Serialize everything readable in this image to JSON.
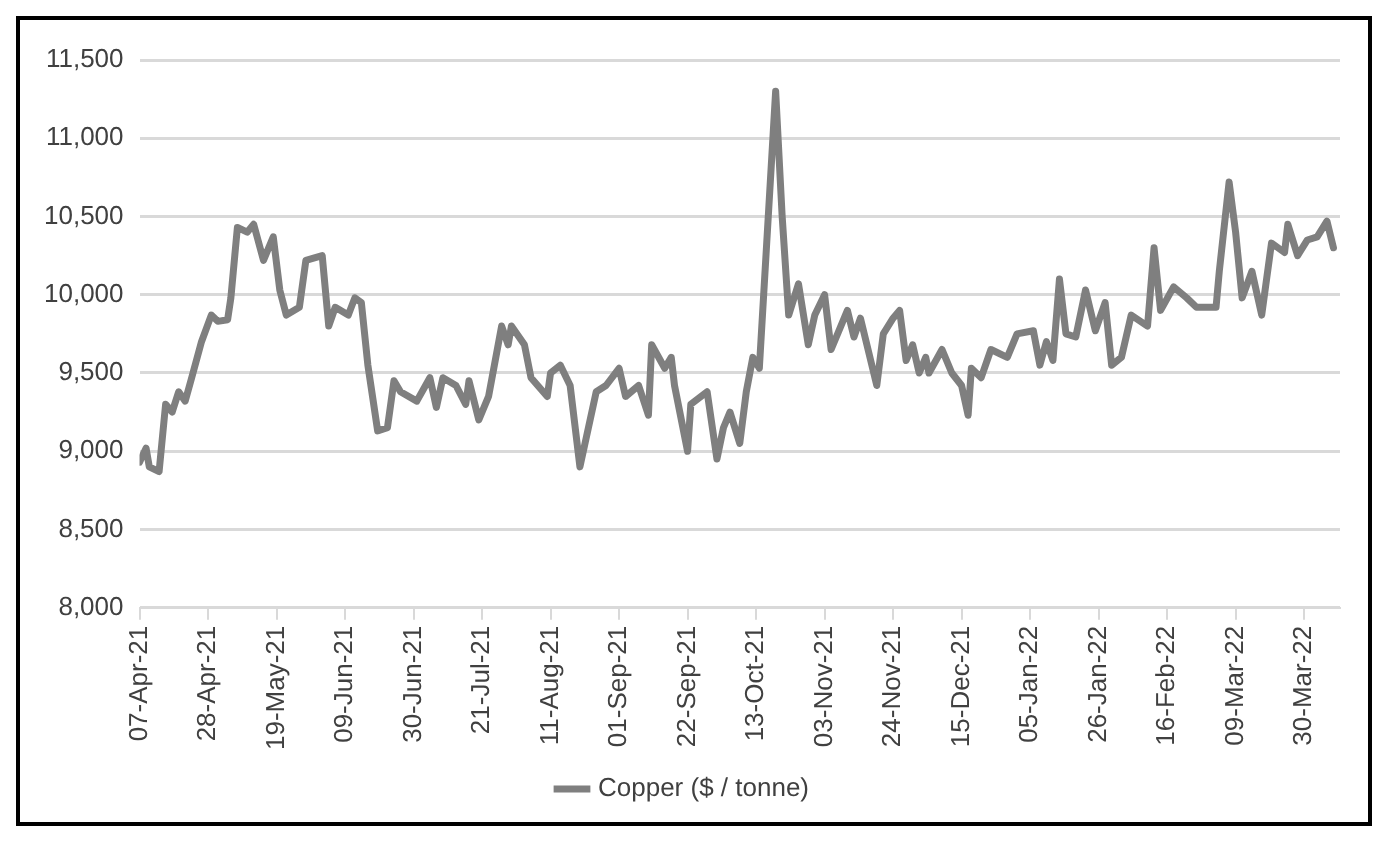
{
  "chart_data": {
    "type": "line",
    "x": [
      "2021-04-07",
      "2021-04-09",
      "2021-04-10",
      "2021-04-13",
      "2021-04-15",
      "2021-04-17",
      "2021-04-19",
      "2021-04-21",
      "2021-04-23",
      "2021-04-26",
      "2021-04-29",
      "2021-05-01",
      "2021-05-04",
      "2021-05-05",
      "2021-05-07",
      "2021-05-10",
      "2021-05-12",
      "2021-05-15",
      "2021-05-18",
      "2021-05-20",
      "2021-05-22",
      "2021-05-26",
      "2021-05-28",
      "2021-06-02",
      "2021-06-04",
      "2021-06-06",
      "2021-06-10",
      "2021-06-12",
      "2021-06-14",
      "2021-06-16",
      "2021-06-19",
      "2021-06-22",
      "2021-06-24",
      "2021-06-26",
      "2021-07-01",
      "2021-07-05",
      "2021-07-07",
      "2021-07-09",
      "2021-07-13",
      "2021-07-16",
      "2021-07-17",
      "2021-07-20",
      "2021-07-23",
      "2021-07-27",
      "2021-07-29",
      "2021-07-30",
      "2021-08-03",
      "2021-08-05",
      "2021-08-10",
      "2021-08-11",
      "2021-08-14",
      "2021-08-17",
      "2021-08-20",
      "2021-08-25",
      "2021-08-28",
      "2021-09-01",
      "2021-09-03",
      "2021-09-07",
      "2021-09-10",
      "2021-09-11",
      "2021-09-15",
      "2021-09-17",
      "2021-09-18",
      "2021-09-22",
      "2021-09-23",
      "2021-09-28",
      "2021-10-01",
      "2021-10-03",
      "2021-10-05",
      "2021-10-08",
      "2021-10-10",
      "2021-10-12",
      "2021-10-14",
      "2021-10-19",
      "2021-10-21",
      "2021-10-23",
      "2021-10-26",
      "2021-10-29",
      "2021-10-31",
      "2021-11-03",
      "2021-11-05",
      "2021-11-10",
      "2021-11-12",
      "2021-11-14",
      "2021-11-19",
      "2021-11-21",
      "2021-11-24",
      "2021-11-26",
      "2021-11-28",
      "2021-11-30",
      "2021-12-02",
      "2021-12-04",
      "2021-12-05",
      "2021-12-09",
      "2021-12-12",
      "2021-12-15",
      "2021-12-17",
      "2021-12-18",
      "2021-12-21",
      "2021-12-24",
      "2021-12-29",
      "2022-01-01",
      "2022-01-06",
      "2022-01-08",
      "2022-01-10",
      "2022-01-12",
      "2022-01-14",
      "2022-01-16",
      "2022-01-19",
      "2022-01-22",
      "2022-01-25",
      "2022-01-28",
      "2022-01-30",
      "2022-02-02",
      "2022-02-05",
      "2022-02-10",
      "2022-02-12",
      "2022-02-14",
      "2022-02-18",
      "2022-02-22",
      "2022-02-25",
      "2022-03-03",
      "2022-03-04",
      "2022-03-07",
      "2022-03-09",
      "2022-03-11",
      "2022-03-14",
      "2022-03-17",
      "2022-03-20",
      "2022-03-24",
      "2022-03-25",
      "2022-03-28",
      "2022-03-31",
      "2022-04-03",
      "2022-04-06",
      "2022-04-08"
    ],
    "series": [
      {
        "name": "Copper ($ / tonne)",
        "color": "#7f7f7f",
        "values": [
          8930,
          9020,
          8900,
          8870,
          9300,
          9250,
          9380,
          9320,
          9470,
          9700,
          9870,
          9830,
          9840,
          9980,
          10430,
          10400,
          10450,
          10220,
          10370,
          10030,
          9870,
          9920,
          10220,
          10250,
          9800,
          9920,
          9870,
          9980,
          9950,
          9550,
          9130,
          9150,
          9450,
          9380,
          9320,
          9470,
          9280,
          9470,
          9420,
          9300,
          9450,
          9200,
          9350,
          9800,
          9680,
          9800,
          9680,
          9470,
          9350,
          9500,
          9550,
          9420,
          8900,
          9380,
          9420,
          9530,
          9350,
          9420,
          9230,
          9680,
          9530,
          9600,
          9420,
          9000,
          9300,
          9380,
          8950,
          9150,
          9250,
          9050,
          9380,
          9600,
          9530,
          11300,
          10500,
          9870,
          10070,
          9680,
          9870,
          10000,
          9650,
          9900,
          9730,
          9850,
          9420,
          9750,
          9850,
          9900,
          9580,
          9680,
          9500,
          9600,
          9500,
          9650,
          9500,
          9420,
          9230,
          9530,
          9470,
          9650,
          9600,
          9750,
          9770,
          9550,
          9700,
          9580,
          10100,
          9750,
          9730,
          10030,
          9770,
          9950,
          9550,
          9600,
          9870,
          9800,
          10300,
          9900,
          10050,
          9980,
          9920,
          9920,
          10150,
          10720,
          10400,
          9980,
          10150,
          9870,
          10330,
          10270,
          10450,
          10250,
          10350,
          10370,
          10470,
          10300
        ]
      }
    ],
    "xlim": [
      "2021-04-07",
      "2022-04-10"
    ],
    "xticks": [
      {
        "value": "2021-04-07",
        "label": "07-Apr-21"
      },
      {
        "value": "2021-04-28",
        "label": "28-Apr-21"
      },
      {
        "value": "2021-05-19",
        "label": "19-May-21"
      },
      {
        "value": "2021-06-09",
        "label": "09-Jun-21"
      },
      {
        "value": "2021-06-30",
        "label": "30-Jun-21"
      },
      {
        "value": "2021-07-21",
        "label": "21-Jul-21"
      },
      {
        "value": "2021-08-11",
        "label": "11-Aug-21"
      },
      {
        "value": "2021-09-01",
        "label": "01-Sep-21"
      },
      {
        "value": "2021-09-22",
        "label": "22-Sep-21"
      },
      {
        "value": "2021-10-13",
        "label": "13-Oct-21"
      },
      {
        "value": "2021-11-03",
        "label": "03-Nov-21"
      },
      {
        "value": "2021-11-24",
        "label": "24-Nov-21"
      },
      {
        "value": "2021-12-15",
        "label": "15-Dec-21"
      },
      {
        "value": "2022-01-05",
        "label": "05-Jan-22"
      },
      {
        "value": "2022-01-26",
        "label": "26-Jan-22"
      },
      {
        "value": "2022-02-16",
        "label": "16-Feb-22"
      },
      {
        "value": "2022-03-09",
        "label": "09-Mar-22"
      },
      {
        "value": "2022-03-30",
        "label": "30-Mar-22"
      }
    ],
    "ylim": [
      8000,
      11500
    ],
    "yticks": [
      {
        "value": 8000,
        "label": "8,000"
      },
      {
        "value": 8500,
        "label": "8,500"
      },
      {
        "value": 9000,
        "label": "9,000"
      },
      {
        "value": 9500,
        "label": "9,500"
      },
      {
        "value": 10000,
        "label": "10,000"
      },
      {
        "value": 10500,
        "label": "10,500"
      },
      {
        "value": 11000,
        "label": "11,000"
      },
      {
        "value": 11500,
        "label": "11,500"
      }
    ],
    "grid": "y",
    "legend": "bottom",
    "marker": "none",
    "line_style": "solid"
  }
}
